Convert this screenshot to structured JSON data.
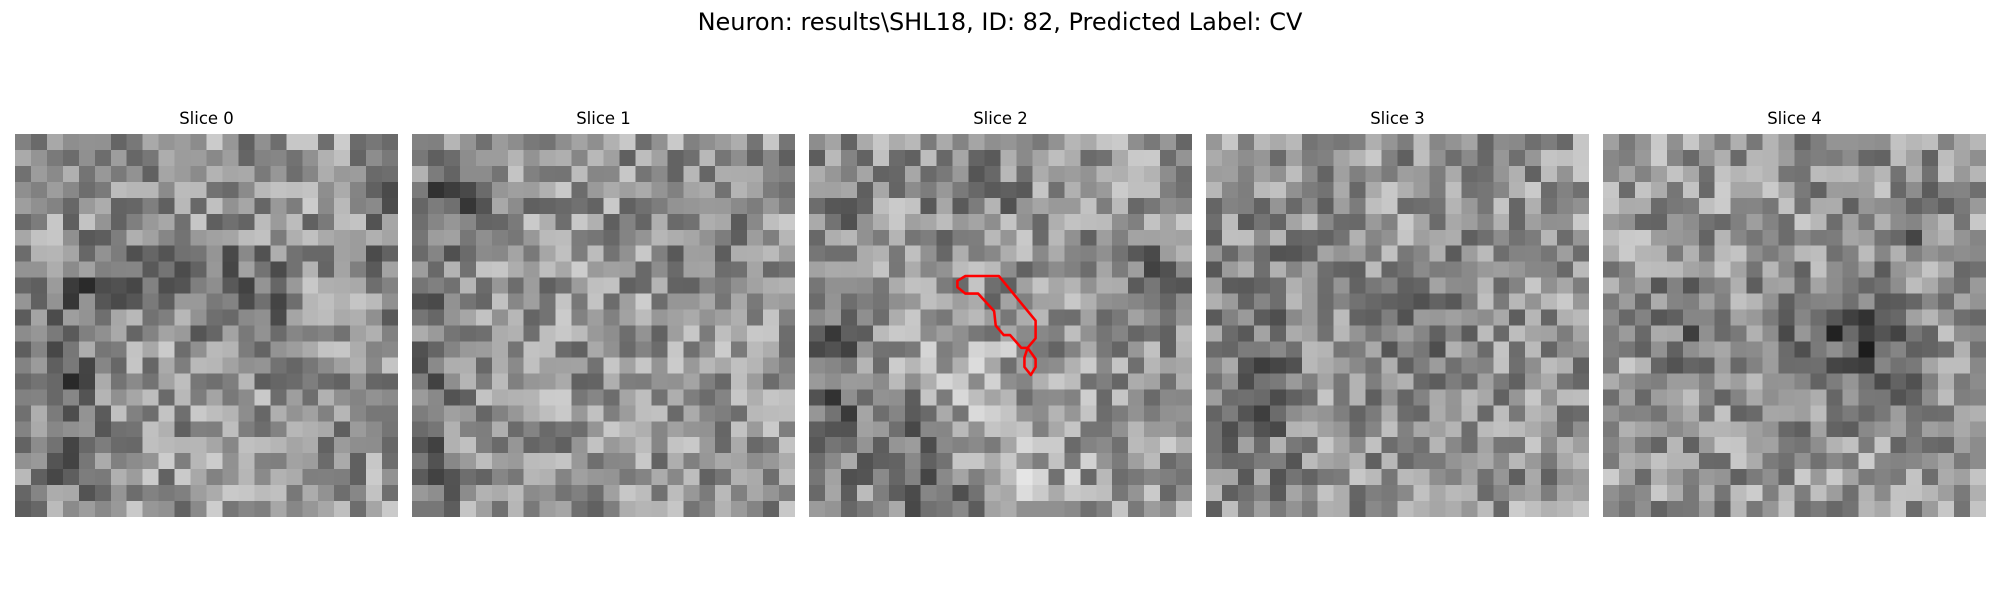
{
  "figure": {
    "title": "Neuron: results\\SHL18, ID: 82, Predicted Label: CV"
  },
  "panels": [
    {
      "title": "Slice 0"
    },
    {
      "title": "Slice 1"
    },
    {
      "title": "Slice 2"
    },
    {
      "title": "Slice 3"
    },
    {
      "title": "Slice 4"
    }
  ],
  "colors": {
    "background": "#ffffff",
    "roi_outline": "#ff0000",
    "colormap": "gray"
  }
}
